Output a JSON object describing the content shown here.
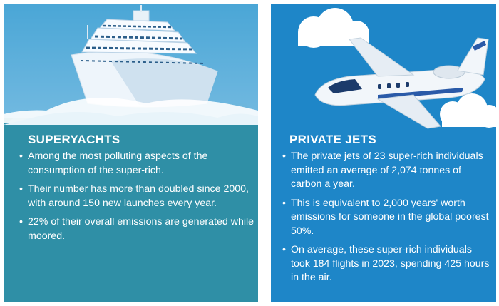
{
  "panels": {
    "yachts": {
      "heading": "SUPERYACHTS",
      "bullets": [
        "Among the most polluting aspects of the consumption of the super-rich.",
        "Their number has more than doubled since 2000, with around 150 new launches every year.",
        "22% of their overall emissions are generated while moored."
      ]
    },
    "jets": {
      "heading": "PRIVATE JETS",
      "bullets": [
        "The private jets of 23 super-rich individuals emitted an average of 2,074 tonnes of carbon a year.",
        "This is equivalent to 2,000 years' worth emissions for someone in the global poorest 50%.",
        "On average, these super-rich individuals took 184 flights in 2023, spending 425 hours in the air."
      ]
    }
  },
  "colors": {
    "yacht_sky": "#4aa6d6",
    "yacht_sea": "#2f8fa6",
    "jet_sky": "#1e86c8",
    "text": "#ffffff"
  },
  "icons": [
    "cruise-ship-illustration",
    "private-jet-illustration",
    "cloud-icon"
  ]
}
